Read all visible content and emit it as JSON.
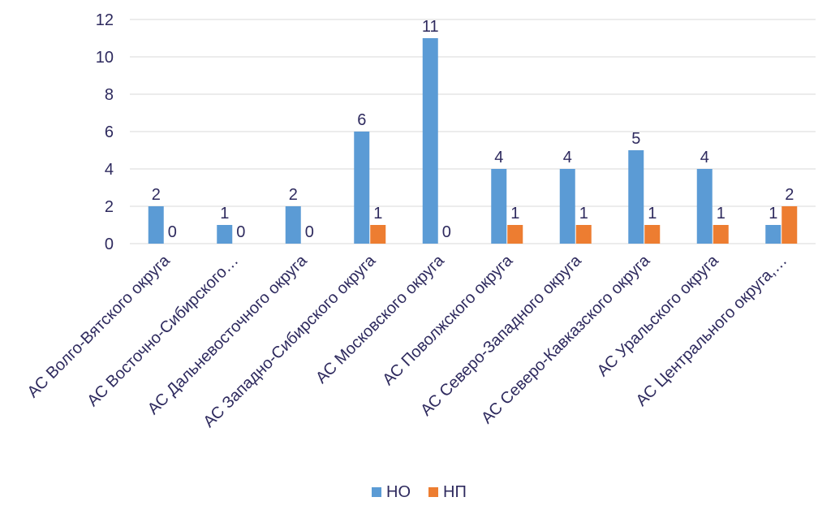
{
  "chart_data": {
    "type": "bar",
    "title": "",
    "xlabel": "",
    "ylabel": "",
    "ylim": [
      0,
      12
    ],
    "yticks": [
      0,
      2,
      4,
      6,
      8,
      10,
      12
    ],
    "grid": true,
    "legend_position": "bottom",
    "categories": [
      "АС Волго-Вятского округа",
      "АС Восточно-Сибирского…",
      "АС Дальневосточного округа",
      "АС Западно-Сибирского округа",
      "АС Московского округа",
      "АС Поволжского округа",
      "АС Северо-Западного округа",
      "АС Северо-Кавказского округа",
      "АС Уральского округа",
      "АС Центрального округа,…"
    ],
    "series": [
      {
        "name": "НО",
        "color": "#5b9bd5",
        "values": [
          2,
          1,
          2,
          6,
          11,
          4,
          4,
          5,
          4,
          1
        ]
      },
      {
        "name": "НП",
        "color": "#ed7d31",
        "values": [
          0,
          0,
          0,
          1,
          0,
          1,
          1,
          1,
          1,
          2
        ]
      }
    ]
  }
}
